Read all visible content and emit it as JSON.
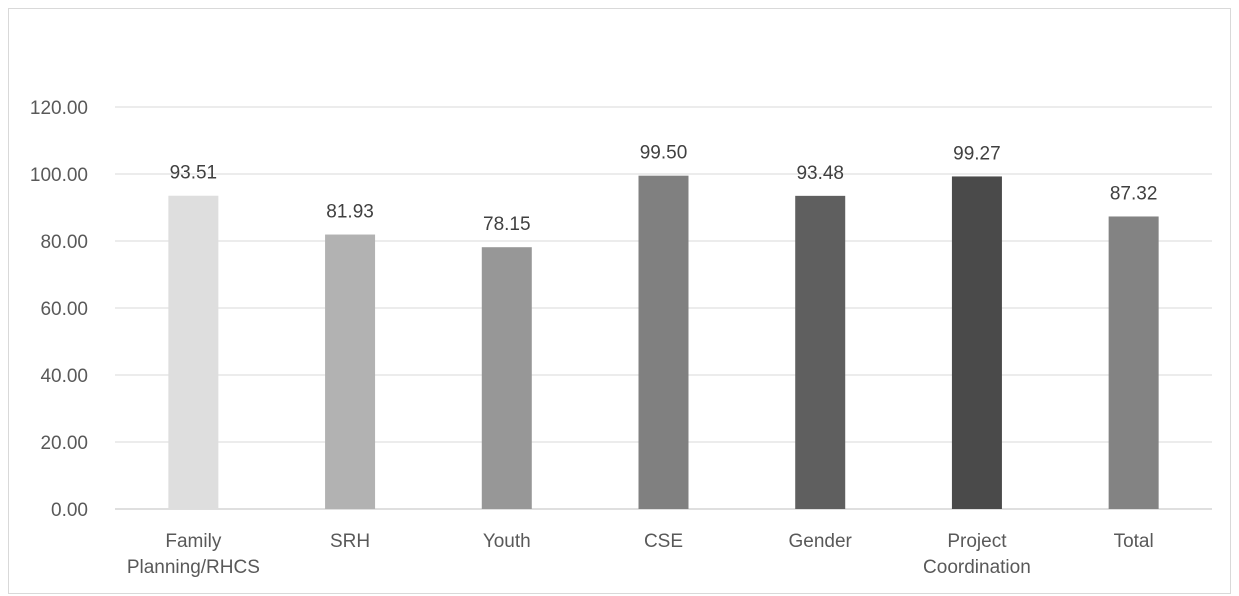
{
  "chart_data": {
    "type": "bar",
    "title": "",
    "xlabel": "",
    "ylabel": "",
    "categories": [
      [
        "Family",
        "Planning/RHCS"
      ],
      [
        "SRH"
      ],
      [
        "Youth"
      ],
      [
        "CSE"
      ],
      [
        "Gender"
      ],
      [
        "Project",
        "Coordination"
      ],
      [
        "Total"
      ]
    ],
    "values": [
      93.51,
      81.93,
      78.15,
      99.5,
      93.48,
      99.27,
      87.32
    ],
    "value_labels": [
      "93.51",
      "81.93",
      "78.15",
      "99.50",
      "93.48",
      "99.27",
      "87.32"
    ],
    "bar_colors": [
      "#dedede",
      "#b2b2b2",
      "#979797",
      "#808080",
      "#5f5f5f",
      "#4a4a4a",
      "#838383"
    ],
    "y_ticks": [
      "0.00",
      "20.00",
      "40.00",
      "60.00",
      "80.00",
      "100.00",
      "120.00"
    ],
    "ylim": [
      0,
      120
    ],
    "grid": true,
    "legend": "none",
    "gridline_color": "#d9d9d9",
    "axis_color": "#bfbfbf"
  }
}
